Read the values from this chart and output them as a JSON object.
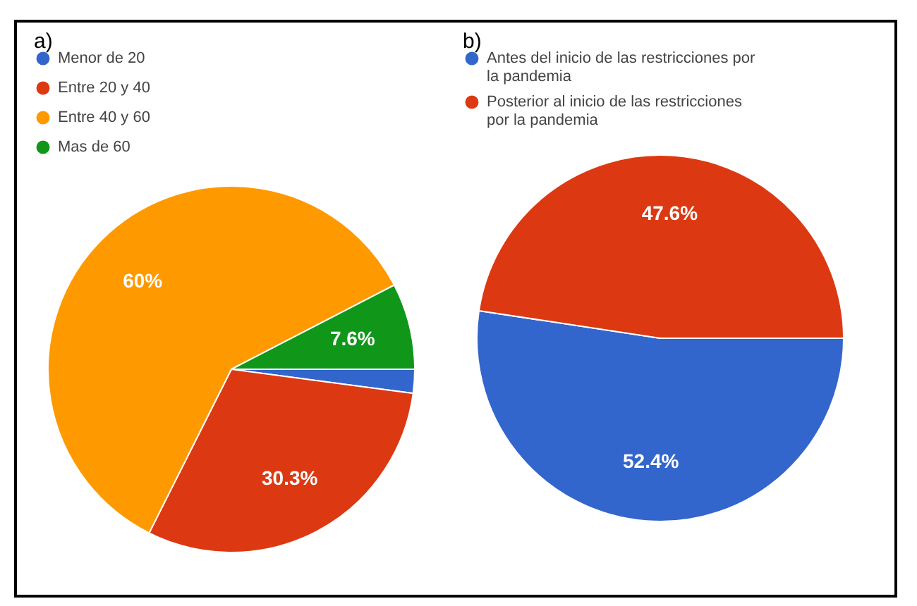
{
  "chart_data": [
    {
      "type": "pie",
      "title": "a)",
      "categories": [
        "Menor de 20",
        "Entre 20 y 40",
        "Entre 40 y 60",
        "Mas de 60"
      ],
      "values": [
        2.1,
        30.3,
        60,
        7.6
      ],
      "colors": [
        "#3366cc",
        "#dc3912",
        "#ff9900",
        "#109618"
      ],
      "value_labels": [
        null,
        "30.3%",
        "60%",
        "7.6%"
      ],
      "legend": "top"
    },
    {
      "type": "pie",
      "title": "b)",
      "categories": [
        "Antes del inicio de las restricciones por la pandemia",
        "Posterior al inicio de las restricciones por la pandemia"
      ],
      "values": [
        52.4,
        47.6
      ],
      "colors": [
        "#3366cc",
        "#dc3912"
      ],
      "value_labels": [
        "52.4%",
        "47.6%"
      ],
      "legend": "top"
    }
  ]
}
